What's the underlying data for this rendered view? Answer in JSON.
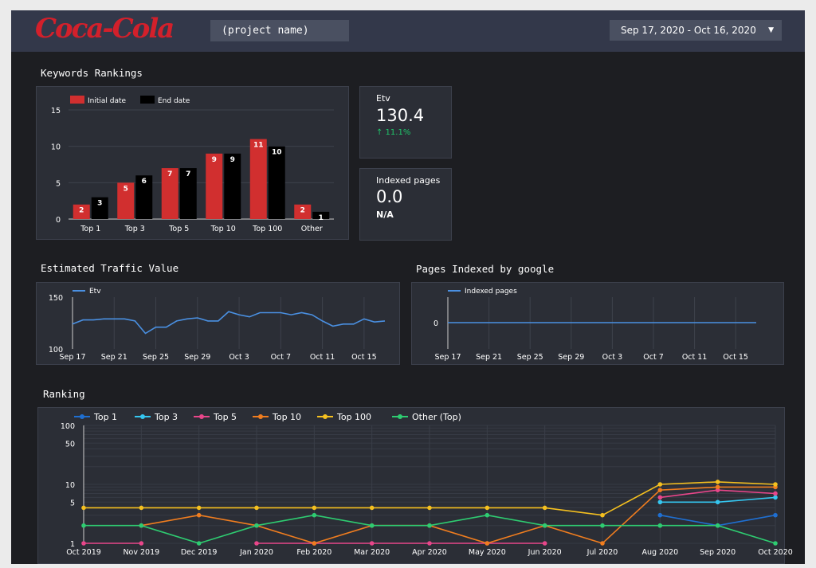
{
  "header": {
    "logo": "Coca-Cola",
    "project_name": "(project name)",
    "date_range": "Sep 17, 2020 - Oct 16, 2020",
    "caret": "▼"
  },
  "sections": {
    "keywords": "Keywords Rankings",
    "traffic": "Estimated Traffic Value",
    "indexed": "Pages Indexed by google",
    "ranking": "Ranking"
  },
  "kpis": {
    "etv": {
      "title": "Etv",
      "value": "130.4",
      "delta": "↑ 11.1%"
    },
    "indexed": {
      "title": "Indexed pages",
      "value": "0.0",
      "sub": "N/A"
    }
  },
  "colors": {
    "bg": "#1d1e22",
    "panel": "#2b2e36",
    "header": "#33384a",
    "red": "#d12f2f",
    "black": "#000000",
    "blue": "#4a90e2",
    "green": "#1fc66a"
  },
  "chart_data": [
    {
      "type": "bar",
      "title": "Keywords Rankings",
      "categories": [
        "Top 1",
        "Top 3",
        "Top 5",
        "Top 10",
        "Top 100",
        "Other"
      ],
      "series": [
        {
          "name": "Initial date",
          "values": [
            2,
            5,
            7,
            9,
            11,
            2
          ]
        },
        {
          "name": "End date",
          "values": [
            3,
            6,
            7,
            9,
            10,
            1
          ]
        }
      ],
      "ylim": [
        0,
        15
      ],
      "yticks": [
        0,
        5,
        10,
        15
      ],
      "legend": "top-left",
      "grid": true
    },
    {
      "type": "line",
      "title": "Estimated Traffic Value",
      "series": [
        {
          "name": "Etv",
          "values": [
            124,
            128,
            128,
            129,
            129,
            129,
            127,
            115,
            121,
            121,
            127,
            129,
            130,
            127,
            127,
            136,
            133,
            131,
            135,
            135,
            135,
            133,
            135,
            133,
            127,
            122,
            124,
            124,
            129,
            126,
            127
          ]
        }
      ],
      "x_ticks": [
        "Sep 17",
        "Sep 21",
        "Sep 25",
        "Sep 29",
        "Oct 3",
        "Oct 7",
        "Oct 11",
        "Oct 15"
      ],
      "x_tick_index": [
        0,
        4,
        8,
        12,
        16,
        20,
        24,
        28
      ],
      "ylim": [
        100,
        150
      ],
      "yticks": [
        100,
        150
      ],
      "legend": "top-left"
    },
    {
      "type": "line",
      "title": "Pages Indexed by google",
      "series": [
        {
          "name": "Indexed pages",
          "values": [
            0,
            0,
            0,
            0,
            0,
            0,
            0,
            0,
            0,
            0,
            0,
            0,
            0,
            0,
            0,
            0,
            0,
            0,
            0,
            0,
            0,
            0,
            0,
            0,
            0,
            0,
            0,
            0,
            0,
            0,
            0
          ]
        }
      ],
      "x_ticks": [
        "Sep 17",
        "Sep 21",
        "Sep 25",
        "Sep 29",
        "Oct 3",
        "Oct 7",
        "Oct 11",
        "Oct 15"
      ],
      "x_tick_index": [
        0,
        4,
        8,
        12,
        16,
        20,
        24,
        28
      ],
      "yticks": [
        0
      ],
      "legend": "top-left"
    },
    {
      "type": "line",
      "title": "Ranking",
      "y_scale": "log",
      "ylim": [
        1,
        100
      ],
      "yticks": [
        1,
        5,
        10,
        50,
        100
      ],
      "categories": [
        "Oct 2019",
        "Nov 2019",
        "Dec 2019",
        "Jan 2020",
        "Feb 2020",
        "Mar 2020",
        "Apr 2020",
        "May 2020",
        "Jun 2020",
        "Jul 2020",
        "Aug 2020",
        "Sep 2020",
        "Oct 2020"
      ],
      "legend": "top-left",
      "series": [
        {
          "name": "Top 1",
          "color": "#1f6fd1",
          "values": [
            null,
            null,
            null,
            null,
            null,
            null,
            null,
            null,
            null,
            null,
            3,
            2,
            3
          ]
        },
        {
          "name": "Top 3",
          "color": "#35c6f0",
          "values": [
            null,
            null,
            null,
            null,
            null,
            null,
            null,
            null,
            null,
            null,
            5,
            5,
            6
          ]
        },
        {
          "name": "Top 5",
          "color": "#e8468a",
          "values": [
            1,
            1,
            null,
            1,
            1,
            1,
            1,
            1,
            1,
            null,
            6,
            8,
            7
          ]
        },
        {
          "name": "Top 10",
          "color": "#f07d1f",
          "values": [
            null,
            2,
            3,
            2,
            1,
            2,
            2,
            1,
            2,
            1,
            8,
            9,
            9
          ]
        },
        {
          "name": "Top 100",
          "color": "#f5c01f",
          "values": [
            4,
            4,
            4,
            4,
            4,
            4,
            4,
            4,
            4,
            3,
            10,
            11,
            10
          ]
        },
        {
          "name": "Other (Top)",
          "color": "#2ecc71",
          "values": [
            2,
            2,
            1,
            2,
            3,
            2,
            2,
            3,
            2,
            2,
            2,
            2,
            1
          ]
        }
      ]
    }
  ]
}
